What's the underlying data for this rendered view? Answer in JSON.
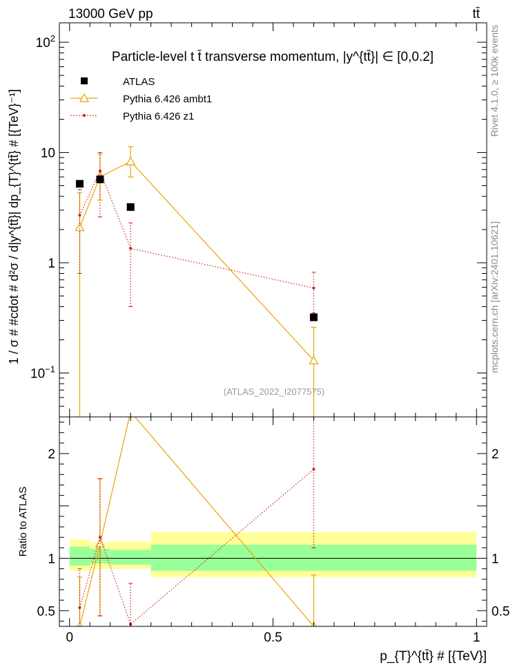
{
  "header": {
    "left": "13000 GeV pp",
    "right": "tt̄"
  },
  "side_labels": {
    "rivet": "Rivet 4.1.0, ≥ 100k events",
    "mcplots": "mcplots.cern.ch [arXiv:2401.10621]"
  },
  "watermark": "(ATLAS_2022_I2077575)",
  "chart_data": [
    {
      "type": "scatter",
      "title": "Particle-level t t̄ transverse momentum, |y^{tt̄}| ∈ [0,0.2]",
      "xlabel": "p_{T}^{tt̄} # [{TeV}]",
      "ylabel": "1 / σ # #cdot # d²σ / d|y^{tt̄}| dp_{T}^{tt̄} # [{TeV}⁻¹]",
      "yscale": "log",
      "xlim": [
        -0.025,
        1.025
      ],
      "ylim": [
        0.04,
        150
      ],
      "y_ticks": [
        {
          "value": 0.1,
          "base": "10",
          "exp": "−1"
        },
        {
          "value": 1,
          "base": "1",
          "exp": ""
        },
        {
          "value": 10,
          "base": "10",
          "exp": ""
        },
        {
          "value": 100,
          "base": "10",
          "exp": "2"
        }
      ],
      "legend_position": "top-left",
      "series": [
        {
          "name": "ATLAS",
          "style": "square",
          "color": "#000000",
          "points": [
            {
              "x": 0.025,
              "y": 5.2
            },
            {
              "x": 0.075,
              "y": 5.7
            },
            {
              "x": 0.15,
              "y": 3.2
            },
            {
              "x": 0.6,
              "y": 0.32
            }
          ]
        },
        {
          "name": "Pythia 6.426 ambt1",
          "style": "triangle-line",
          "color": "#e8a400",
          "points": [
            {
              "x": 0.025,
              "y": 2.1,
              "ylo": 0.01,
              "yhi": 4.3
            },
            {
              "x": 0.075,
              "y": 6.0,
              "ylo": 3.7,
              "yhi": 9.7
            },
            {
              "x": 0.15,
              "y": 8.3,
              "ylo": 6.0,
              "yhi": 11.3
            },
            {
              "x": 0.6,
              "y": 0.13,
              "ylo": 0.01,
              "yhi": 0.26
            }
          ]
        },
        {
          "name": "Pythia 6.426 z1",
          "style": "dot-dotted",
          "color": "#cc1f1a",
          "points": [
            {
              "x": 0.025,
              "y": 2.7,
              "ylo": 0.8,
              "yhi": 4.6
            },
            {
              "x": 0.075,
              "y": 6.8,
              "ylo": 2.6,
              "yhi": 10.0
            },
            {
              "x": 0.15,
              "y": 1.35,
              "ylo": 0.4,
              "yhi": 2.3
            },
            {
              "x": 0.6,
              "y": 0.59,
              "ylo": 0.35,
              "yhi": 0.82
            }
          ]
        }
      ]
    },
    {
      "type": "scatter",
      "ylabel": "Ratio to ATLAS",
      "xlabel": "p_{T}^{tt̄} # [{TeV}]",
      "xlim": [
        -0.025,
        1.025
      ],
      "ylim": [
        0.35,
        2.35
      ],
      "y_ticks": [
        0.5,
        1,
        2
      ],
      "x_ticks": [
        {
          "value": 0,
          "label": "0"
        },
        {
          "value": 0.5,
          "label": "0.5"
        },
        {
          "value": 1,
          "label": "1"
        }
      ],
      "bands": [
        {
          "x0": 0.0,
          "x1": 0.05,
          "inner": [
            0.93,
            1.11
          ],
          "outer": [
            0.88,
            1.18
          ]
        },
        {
          "x0": 0.05,
          "x1": 0.1,
          "inner": [
            0.95,
            1.09
          ],
          "outer": [
            0.9,
            1.15
          ]
        },
        {
          "x0": 0.1,
          "x1": 0.2,
          "inner": [
            0.94,
            1.08
          ],
          "outer": [
            0.9,
            1.16
          ]
        },
        {
          "x0": 0.2,
          "x1": 1.0,
          "inner": [
            0.88,
            1.13
          ],
          "outer": [
            0.82,
            1.25
          ]
        }
      ],
      "band_colors": {
        "inner": "#99ff99",
        "outer": "#ffff99"
      },
      "series": [
        {
          "name": "Pythia 6.426 ambt1",
          "color": "#e8a400",
          "points": [
            {
              "x": 0.025,
              "y": 0.35,
              "ylo": 0.35,
              "yhi": 0.82
            },
            {
              "x": 0.075,
              "y": 1.14,
              "ylo": 0.45,
              "yhi": 1.76
            },
            {
              "x": 0.15,
              "y": 2.4,
              "ylo": 2.4,
              "yhi": 2.4
            },
            {
              "x": 0.6,
              "y": 0.35,
              "ylo": 0.35,
              "yhi": 0.84
            }
          ]
        },
        {
          "name": "Pythia 6.426 z1",
          "color": "#cc1f1a",
          "points": [
            {
              "x": 0.025,
              "y": 0.53,
              "ylo": 0.35,
              "yhi": 0.9
            },
            {
              "x": 0.075,
              "y": 1.2,
              "ylo": 0.45,
              "yhi": 1.76
            },
            {
              "x": 0.15,
              "y": 0.37,
              "ylo": 0.35,
              "yhi": 0.76
            },
            {
              "x": 0.6,
              "y": 1.85,
              "ylo": 1.1,
              "yhi": 2.4
            }
          ]
        }
      ]
    }
  ]
}
